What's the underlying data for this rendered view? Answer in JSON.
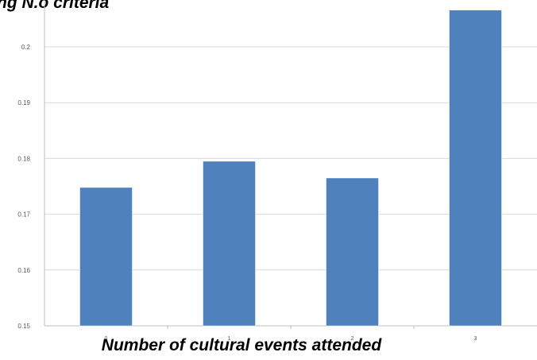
{
  "chart_data": {
    "type": "bar",
    "title_fragment": "ng N.o criteria",
    "xlabel": "Number of cultural events attended",
    "ylabel": "",
    "categories": [
      "0",
      "1",
      "2",
      "3"
    ],
    "values": [
      0.1748,
      0.1795,
      0.1765,
      0.2066
    ],
    "ylim": [
      0.15,
      0.207
    ],
    "yticks": [
      "0.15",
      "0.16",
      "0.17",
      "0.18",
      "0.19",
      "0.2"
    ],
    "grid": true,
    "bar_color": "#4f81bd",
    "grid_color": "#d9d9d9"
  }
}
